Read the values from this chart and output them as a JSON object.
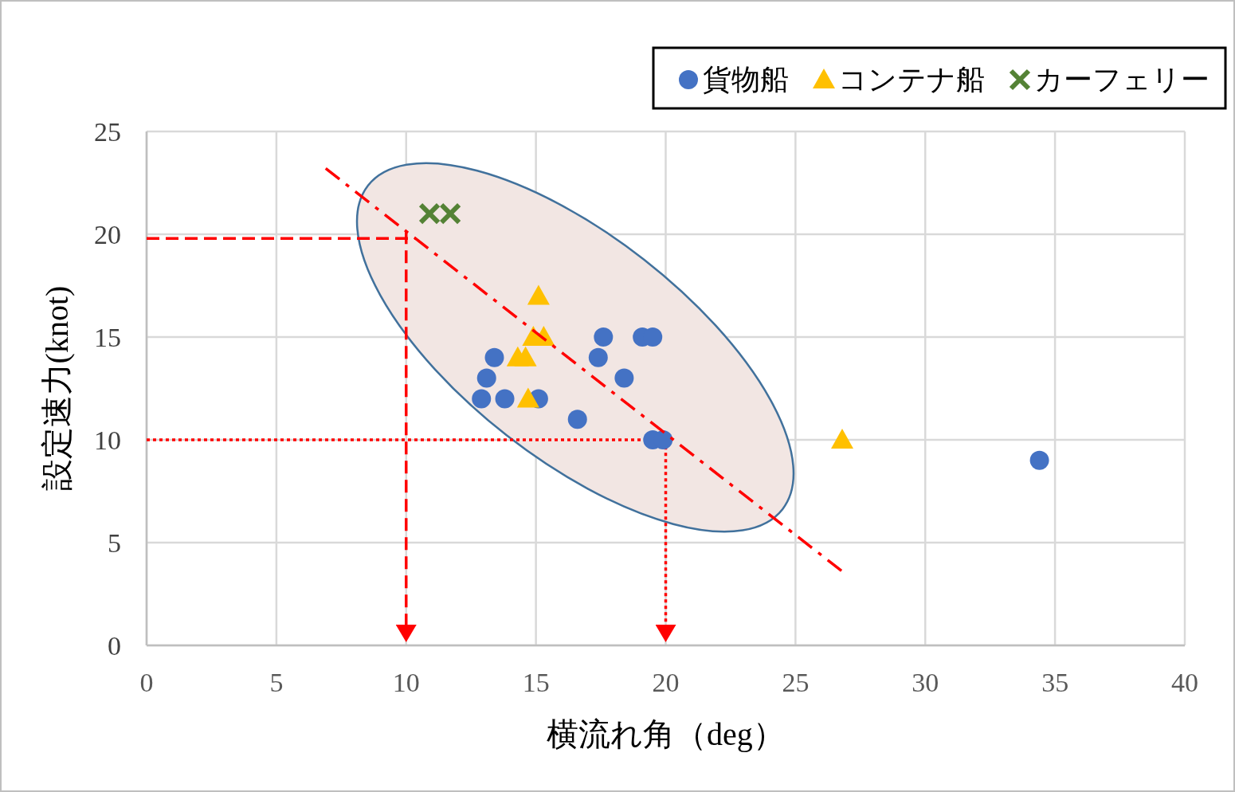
{
  "chart_data": {
    "type": "scatter",
    "xlabel": "横流れ角（deg）",
    "ylabel": "設定速力(knot)",
    "xlim": [
      0,
      40
    ],
    "ylim": [
      0,
      25
    ],
    "xticks": [
      0,
      5,
      10,
      15,
      20,
      25,
      30,
      35,
      40
    ],
    "yticks": [
      0,
      5,
      10,
      15,
      20,
      25
    ],
    "grid": true,
    "legend": "top right",
    "series": [
      {
        "name": "貨物船",
        "color": "#4472c4",
        "marker": "circle",
        "x": [
          12.9,
          13.1,
          13.4,
          13.8,
          15.1,
          16.6,
          17.4,
          17.6,
          18.4,
          19.1,
          19.5,
          19.5,
          19.9,
          34.4
        ],
        "values": [
          12,
          13,
          14,
          12,
          12,
          11,
          14,
          15,
          13,
          15,
          15,
          10,
          10,
          9
        ]
      },
      {
        "name": "コンテナ船",
        "color": "#ffc000",
        "marker": "triangle",
        "x": [
          15.1,
          14.9,
          15.3,
          14.3,
          14.6,
          14.7,
          26.8
        ],
        "values": [
          17,
          15,
          15,
          14,
          14,
          12,
          10
        ]
      },
      {
        "name": "カーフェリー",
        "color": "#548235",
        "marker": "cross",
        "x": [
          10.9,
          11.7
        ],
        "values": [
          21,
          21
        ]
      },
      {
        "type": "line",
        "color": "#ff0000",
        "line_style": "dashed",
        "marker": "none",
        "x": [
          6.9,
          26.8
        ],
        "values": [
          23.2,
          3.6
        ]
      }
    ],
    "ref_lines": [
      {
        "axis": "y",
        "value": 19.8,
        "color": "#ff0000",
        "line_style": "dashed"
      },
      {
        "axis": "x",
        "value": 10,
        "color": "#ff0000",
        "line_style": "dashed"
      },
      {
        "axis": "y",
        "value": 10,
        "color": "#ff0000",
        "line_style": "dotted"
      },
      {
        "axis": "x",
        "value": 20,
        "color": "#ff0000",
        "line_style": "dotted"
      }
    ]
  }
}
